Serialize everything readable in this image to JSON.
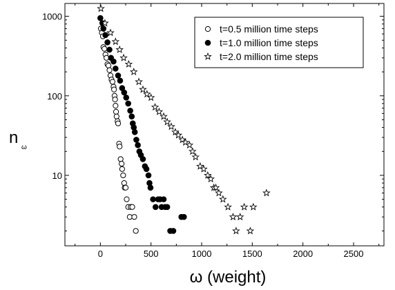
{
  "chart_data": {
    "type": "scatter",
    "title": "",
    "xlabel": "ω (weight)",
    "ylabel_main": "n",
    "ylabel_sub": "ω",
    "xlim": [
      -350,
      2800
    ],
    "ylim": [
      1.3,
      1450
    ],
    "yscale": "log",
    "x_ticks": [
      0,
      500,
      1000,
      1500,
      2000,
      2500
    ],
    "x_tick_labels": [
      "0",
      "500",
      "1000",
      "1500",
      "2000",
      "2500"
    ],
    "y_ticks": [
      10,
      100,
      1000
    ],
    "y_tick_labels": [
      "10",
      "100",
      "1000"
    ],
    "grid": false,
    "legend": {
      "placement": "top-right",
      "entries": [
        {
          "label": "t=0.5 million time steps",
          "marker": "open-circle"
        },
        {
          "label": "t=1.0 million time steps",
          "marker": "filled-circle"
        },
        {
          "label": "t=2.0 million time steps",
          "marker": "open-star"
        }
      ]
    },
    "series": [
      {
        "name": "t=0.5 million time steps",
        "marker": "open-circle",
        "points": [
          [
            5,
            700
          ],
          [
            15,
            620
          ],
          [
            25,
            560
          ],
          [
            30,
            410
          ],
          [
            40,
            390
          ],
          [
            50,
            330
          ],
          [
            60,
            300
          ],
          [
            70,
            250
          ],
          [
            80,
            240
          ],
          [
            90,
            210
          ],
          [
            100,
            180
          ],
          [
            110,
            160
          ],
          [
            120,
            150
          ],
          [
            130,
            130
          ],
          [
            135,
            120
          ],
          [
            140,
            100
          ],
          [
            145,
            90
          ],
          [
            150,
            75
          ],
          [
            155,
            63
          ],
          [
            160,
            55
          ],
          [
            170,
            48
          ],
          [
            175,
            45
          ],
          [
            185,
            25
          ],
          [
            190,
            23
          ],
          [
            200,
            16
          ],
          [
            210,
            14
          ],
          [
            215,
            12
          ],
          [
            225,
            10
          ],
          [
            235,
            8
          ],
          [
            240,
            7
          ],
          [
            250,
            7
          ],
          [
            260,
            5
          ],
          [
            275,
            4
          ],
          [
            290,
            3
          ],
          [
            300,
            4
          ],
          [
            315,
            4
          ],
          [
            335,
            3
          ],
          [
            350,
            2
          ]
        ]
      },
      {
        "name": "t=1.0 million time steps",
        "marker": "filled-circle",
        "points": [
          [
            0,
            950
          ],
          [
            20,
            820
          ],
          [
            30,
            700
          ],
          [
            50,
            580
          ],
          [
            70,
            470
          ],
          [
            90,
            380
          ],
          [
            105,
            300
          ],
          [
            130,
            270
          ],
          [
            150,
            220
          ],
          [
            175,
            180
          ],
          [
            195,
            155
          ],
          [
            215,
            125
          ],
          [
            235,
            110
          ],
          [
            255,
            95
          ],
          [
            275,
            80
          ],
          [
            295,
            65
          ],
          [
            310,
            55
          ],
          [
            320,
            45
          ],
          [
            330,
            40
          ],
          [
            340,
            35
          ],
          [
            355,
            28
          ],
          [
            370,
            24
          ],
          [
            385,
            20
          ],
          [
            400,
            18
          ],
          [
            420,
            16
          ],
          [
            440,
            13
          ],
          [
            455,
            12
          ],
          [
            475,
            10
          ],
          [
            485,
            8
          ],
          [
            495,
            7
          ],
          [
            520,
            5
          ],
          [
            545,
            4
          ],
          [
            570,
            5
          ],
          [
            590,
            5
          ],
          [
            605,
            4
          ],
          [
            625,
            5
          ],
          [
            640,
            4
          ],
          [
            660,
            4
          ],
          [
            690,
            2
          ],
          [
            720,
            2
          ],
          [
            800,
            3
          ],
          [
            825,
            3
          ]
        ]
      },
      {
        "name": "t=2.0 million time steps",
        "marker": "open-star",
        "points": [
          [
            5,
            1250
          ],
          [
            45,
            820
          ],
          [
            100,
            620
          ],
          [
            150,
            480
          ],
          [
            190,
            380
          ],
          [
            230,
            300
          ],
          [
            280,
            250
          ],
          [
            330,
            200
          ],
          [
            380,
            150
          ],
          [
            420,
            120
          ],
          [
            460,
            105
          ],
          [
            500,
            95
          ],
          [
            540,
            72
          ],
          [
            580,
            63
          ],
          [
            625,
            55
          ],
          [
            660,
            47
          ],
          [
            700,
            41
          ],
          [
            740,
            35
          ],
          [
            770,
            32
          ],
          [
            810,
            28
          ],
          [
            840,
            26
          ],
          [
            880,
            24
          ],
          [
            910,
            20
          ],
          [
            940,
            17
          ],
          [
            985,
            13
          ],
          [
            1020,
            12
          ],
          [
            1060,
            10
          ],
          [
            1090,
            9
          ],
          [
            1120,
            7
          ],
          [
            1140,
            7
          ],
          [
            1170,
            6
          ],
          [
            1210,
            5
          ],
          [
            1260,
            4
          ],
          [
            1310,
            3
          ],
          [
            1340,
            2
          ],
          [
            1380,
            3
          ],
          [
            1420,
            4
          ],
          [
            1480,
            2
          ],
          [
            1510,
            4
          ],
          [
            1640,
            6
          ]
        ]
      }
    ]
  }
}
